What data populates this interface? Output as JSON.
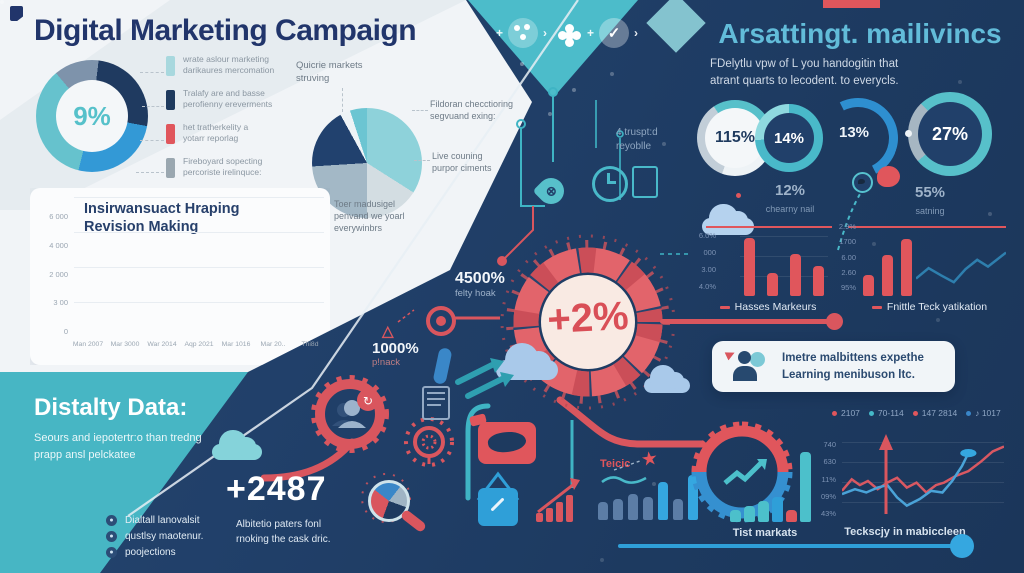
{
  "left": {
    "title": "Digital Marketing Campaign",
    "donut_legend": [
      {
        "color": "#a8d8de",
        "lines": [
          "wrate aslour marketing",
          "darikaures mercomation"
        ]
      },
      {
        "color": "#1e3a5e",
        "lines": [
          "Tralafy are and basse",
          "perofienny ereverments"
        ]
      },
      {
        "color": "#e0565c",
        "lines": [
          "het tratherkelity a",
          "yotarr reporlag"
        ]
      },
      {
        "color": "#9aa7b0",
        "lines": [
          "Fireboyard sopecting",
          "percoriste irelinquce:"
        ]
      }
    ],
    "pie_label": "Quicrie markets\nstruving",
    "pie_note1": "Fildoran checctioring\nsegvuand exing:",
    "pie_note2": "Live couning\npurpor ciments",
    "pie_note3": "Toer madusigel\npenvand we yoarl\neverywinbrs"
  },
  "teal_section": {
    "heading": "Distalty Data:",
    "body": "Seours and iepotertr:o than tredng prapp ansl pelckatee",
    "metric": "+2487",
    "list": [
      "Dialtall lanovalsit",
      "qustlsy maotenur.",
      "poojections"
    ],
    "note": "Albitetio paters fonl rnoking the cask dric."
  },
  "center": {
    "gauge_value": "+2%",
    "stat1_value": "4500%",
    "stat1_label": "felty hoak",
    "stat2_value": "1000%",
    "stat2_label": "p!nack"
  },
  "right": {
    "title": "Arsattingt. mailivincs",
    "subtitle": "FDelytlu vpw of L you handogitin that\natrant quarts to lecodent. to everycls.",
    "note": "4 truspt:d\nreyoblle",
    "rings": {
      "r1": "115%",
      "r2": "14%",
      "r3": "13%",
      "r4": "27%"
    },
    "substat1_value": "12%",
    "substat1_label": "chearny nail",
    "substat2_value": "55%",
    "substat2_label": "satning",
    "mini1_legend": [
      {
        "color": "#e0565c",
        "label": "Hasses Markeurs"
      }
    ],
    "mini2_legend": [
      {
        "color": "#e0565c",
        "label": "Fnittle Teck yatikation"
      }
    ],
    "box_text": "Imetre malbittens expethe\nLearning menibuson ltc.",
    "dots_legend": [
      {
        "color": "#e0565c",
        "label": "2107"
      },
      {
        "color": "#45b9c9",
        "label": "70-114"
      },
      {
        "color": "#e0565c",
        "label": "147 2814"
      },
      {
        "color": "#3a86c8",
        "label": "♪ 1017"
      }
    ],
    "line_chart_label": "Teckscjy in mabiccleen",
    "tist_label": "Tist markats",
    "teicic_label": "Teicic"
  },
  "chart_data": {
    "donut_overview": {
      "type": "donut",
      "from": 320,
      "center_label": "9%",
      "title": "campaign share donut",
      "slices": [
        {
          "label": "gray-blue",
          "color": "#7e93ab",
          "value": 13
        },
        {
          "label": "navy",
          "color": "#1f3a60",
          "value": 26
        },
        {
          "label": "blue",
          "color": "#3399d6",
          "value": 26
        },
        {
          "label": "teal",
          "color": "#66c2cd",
          "value": 35
        }
      ]
    },
    "market_pie": {
      "type": "pie",
      "from": 0,
      "title": "Quicrie markets struving",
      "slices": [
        {
          "label": "teal",
          "color": "#8ed2da",
          "value": 34
        },
        {
          "label": "pale",
          "color": "#d3dde2",
          "value": 16
        },
        {
          "label": "gray-blue",
          "color": "#a3b8c6",
          "value": 24
        },
        {
          "label": "navy",
          "color": "#21416e",
          "value": 18
        },
        {
          "label": "white gap",
          "color": "#eef3f6",
          "value": 3
        },
        {
          "label": "teal sliver",
          "color": "#6cc5d2",
          "value": 5
        }
      ]
    },
    "revision_bars": {
      "type": "stacked-bar",
      "title": "Insirwansuact Hraping\nRevision Making",
      "categories": [
        "Man 2007",
        "Mar 3000",
        "War 2014",
        "Aqp 2021",
        "Mar 1016",
        "Mar 20..",
        "Thi8d"
      ],
      "yticks": [
        "6 000",
        "4 000",
        "2 000",
        "3 00",
        "0"
      ],
      "ymax": 5000,
      "series": [
        {
          "name": "blue",
          "color": "#2d9fd9",
          "values": [
            900,
            1500,
            1800,
            2150,
            2900,
            3350,
            4300
          ]
        },
        {
          "name": "red",
          "color": "#e0565c",
          "values": [
            0,
            0,
            0,
            0,
            0,
            0,
            480
          ]
        },
        {
          "name": "gray",
          "color": "#b9c6d4",
          "values": [
            260,
            300,
            400,
            720,
            980,
            1000,
            180
          ]
        }
      ]
    },
    "hasses_bars": {
      "type": "bar",
      "max": 70,
      "color": "#e0565c",
      "yticks": [
        "6.0%",
        "000",
        "3.00",
        "4.0%"
      ],
      "values": [
        63,
        25,
        46,
        33
      ],
      "title": "Hasses Markeurs"
    },
    "fnittle_bars": {
      "type": "bar",
      "max": 70,
      "color": "#e0565c",
      "yticks": [
        "2.9%",
        "1700",
        "6.00",
        "2.60",
        "95%"
      ],
      "values": [
        23,
        45,
        62
      ],
      "title": "Fnittle Teck yatikation"
    },
    "fnittle_line": {
      "type": "line",
      "series": [
        {
          "name": "trend",
          "color": "#2e7fae",
          "points": [
            [
              0,
              78
            ],
            [
              14,
              58
            ],
            [
              28,
              72
            ],
            [
              42,
              85
            ],
            [
              55,
              60
            ],
            [
              68,
              42
            ],
            [
              80,
              55
            ],
            [
              100,
              28
            ]
          ]
        }
      ]
    },
    "market_mini_bars": {
      "type": "bar",
      "max": 50,
      "values": [
        19,
        22,
        27,
        24,
        40,
        22,
        47
      ],
      "colors": [
        "#5c7da6",
        "#5c7da6",
        "#5c7da6",
        "#5c7da6",
        "#35a7e0",
        "#5c7da6",
        "#35a7e0"
      ]
    },
    "tist_bars": {
      "type": "bar",
      "max": 72,
      "values": [
        12,
        16,
        21,
        25,
        12,
        70
      ],
      "colors": [
        "#4cc0cb",
        "#4cc0cb",
        "#4cc0cb",
        "#2f9fd8",
        "#e0565c",
        "#4cc0cb"
      ]
    },
    "tech_lines": {
      "type": "line",
      "title": "Teckscjy in mabiccleen",
      "yticks": [
        "740",
        "630",
        "11%",
        "09%",
        "43%"
      ],
      "series": [
        {
          "name": "red",
          "color": "#d95862",
          "points": [
            [
              0,
              62
            ],
            [
              6,
              48
            ],
            [
              11,
              55
            ],
            [
              16,
              50
            ],
            [
              22,
              60
            ],
            [
              28,
              52
            ],
            [
              34,
              46
            ],
            [
              40,
              58
            ],
            [
              46,
              52
            ],
            [
              52,
              64
            ],
            [
              58,
              55
            ],
            [
              63,
              52
            ],
            [
              70,
              44
            ],
            [
              78,
              38
            ],
            [
              86,
              26
            ],
            [
              93,
              14
            ],
            [
              100,
              8
            ]
          ]
        },
        {
          "name": "blue",
          "color": "#4aa3d8",
          "points": [
            [
              0,
              66
            ],
            [
              8,
              60
            ],
            [
              15,
              64
            ],
            [
              22,
              58
            ],
            [
              28,
              55
            ],
            [
              34,
              70
            ],
            [
              40,
              80
            ],
            [
              48,
              72
            ],
            [
              55,
              62
            ],
            [
              62,
              64
            ],
            [
              68,
              50
            ],
            [
              74,
              32
            ],
            [
              78,
              16
            ]
          ]
        }
      ],
      "end_dot": {
        "color": "#35a7e0",
        "at": [
          78,
          16
        ],
        "r": 5
      }
    }
  }
}
